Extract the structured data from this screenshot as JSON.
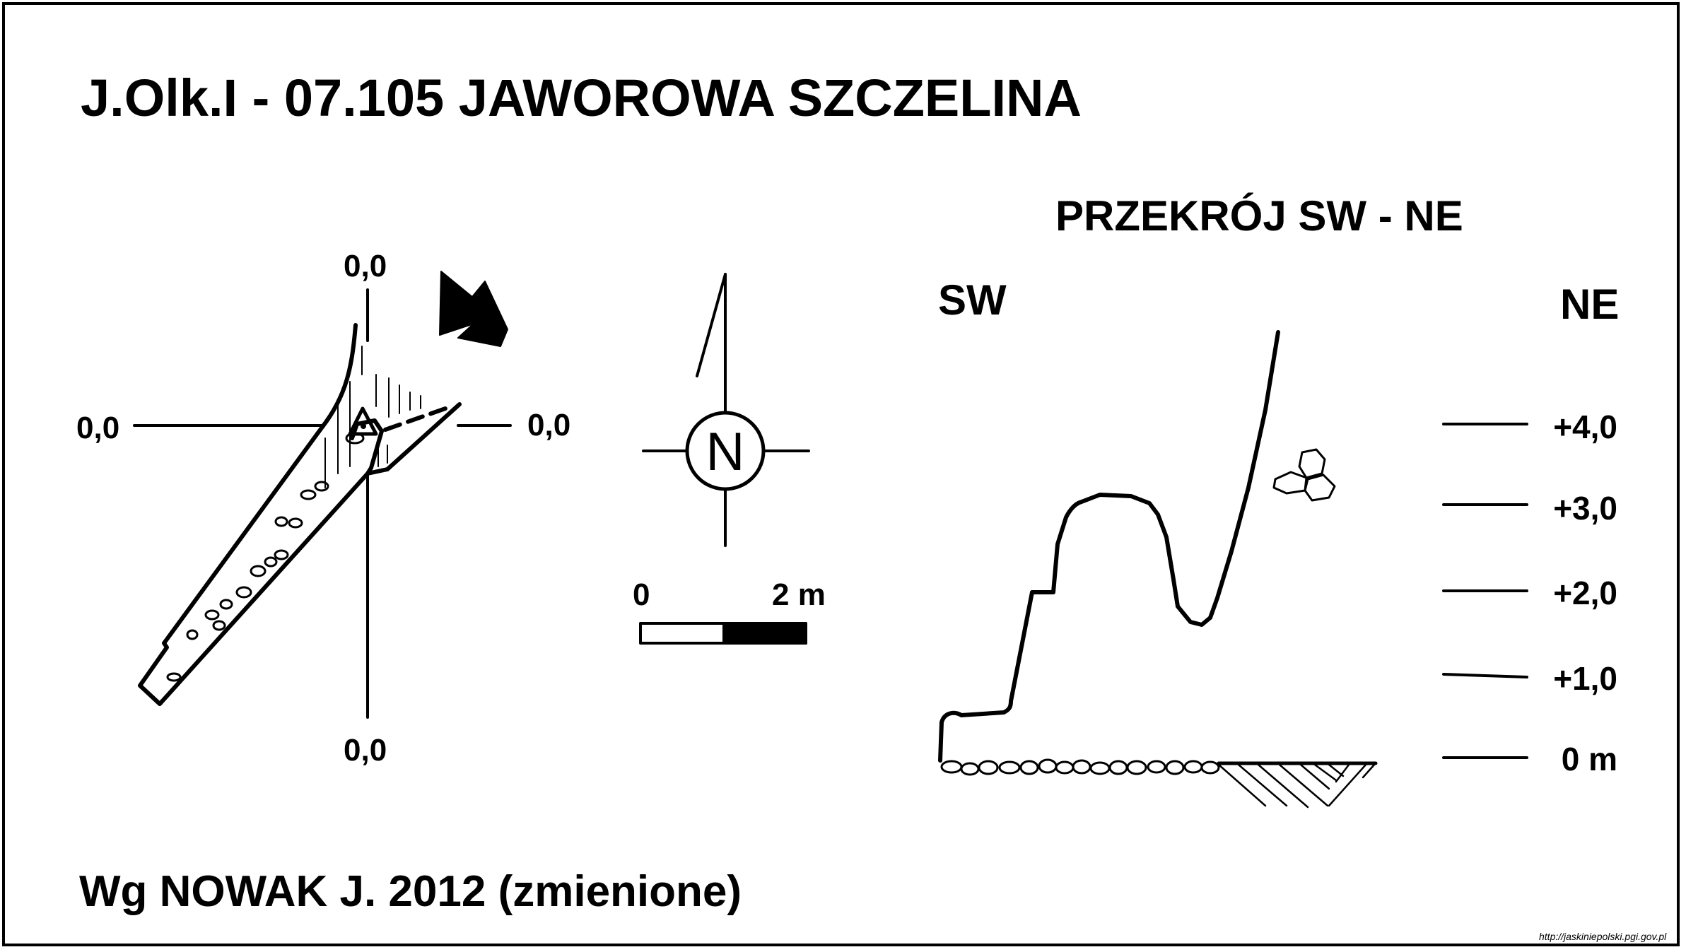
{
  "title": "J.Olk.I - 07.105  JAWOROWA SZCZELINA",
  "plan": {
    "coord_top": "0,0",
    "coord_left": "0,0",
    "coord_right": "0,0",
    "coord_bottom": "0,0",
    "entrance_arrow_icon": "entrance-arrow-icon"
  },
  "compass": {
    "north_label": "N",
    "icon": "compass-rose-icon"
  },
  "scale_bar": {
    "start_label": "0",
    "end_label": "2 m"
  },
  "section": {
    "title": "PRZEKRÓJ SW - NE",
    "left_label": "SW",
    "right_label": "NE",
    "levels": [
      "+4,0",
      "+3,0",
      "+2,0",
      "+1,0",
      "0 m"
    ]
  },
  "credit": "Wg NOWAK J. 2012 (zmienione)",
  "source_url": "http://jaskiniepolski.pgi.gov.pl",
  "colors": {
    "ink": "#000000",
    "paper": "#ffffff"
  }
}
